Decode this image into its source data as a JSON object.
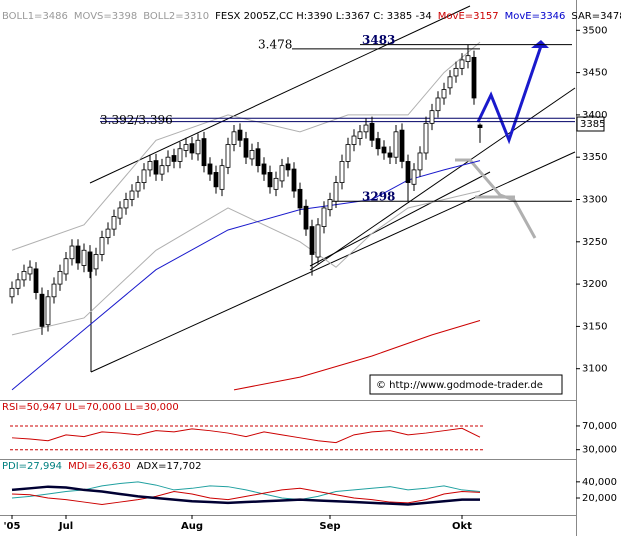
{
  "chart_data": [
    {
      "type": "candlestick",
      "header": [
        {
          "text": "BOLL1=3486",
          "color": "#999999"
        },
        {
          "text": "MOVS=3398",
          "color": "#999999"
        },
        {
          "text": "BOLL2=3310",
          "color": "#999999"
        },
        {
          "text": "FESX 2005Z,CC H:3390 L:3367 C: 3385 -34",
          "color": "#000000"
        },
        {
          "text": "MovE=3157",
          "color": "#cc0000"
        },
        {
          "text": "MovE=3346",
          "color": "#0000cc"
        },
        {
          "text": "SAR=3478",
          "color": "#000000"
        }
      ],
      "categories": [
        "'05",
        null,
        null,
        null,
        null,
        null,
        null,
        null,
        null,
        "Jul",
        null,
        null,
        null,
        null,
        null,
        null,
        null,
        null,
        null,
        null,
        null,
        null,
        null,
        null,
        null,
        null,
        null,
        null,
        null,
        null,
        "Aug",
        null,
        null,
        null,
        null,
        null,
        null,
        null,
        null,
        null,
        null,
        null,
        null,
        null,
        null,
        null,
        null,
        null,
        null,
        null,
        null,
        null,
        null,
        "Sep",
        null,
        null,
        null,
        null,
        null,
        null,
        null,
        null,
        null,
        null,
        null,
        null,
        null,
        null,
        null,
        null,
        null,
        null,
        null,
        null,
        null,
        "Okt",
        null,
        null,
        null
      ],
      "open": [
        3185,
        3195,
        3205,
        3212,
        3218,
        3188,
        3152,
        3185,
        3200,
        3212,
        3230,
        3245,
        3222,
        3238,
        3218,
        3235,
        3255,
        3265,
        3278,
        3290,
        3300,
        3310,
        3320,
        3335,
        3346,
        3330,
        3340,
        3352,
        3345,
        3358,
        3366,
        3354,
        3372,
        3342,
        3332,
        3312,
        3338,
        3365,
        3382,
        3372,
        3348,
        3360,
        3342,
        3332,
        3312,
        3322,
        3342,
        3336,
        3312,
        3292,
        3268,
        3232,
        3268,
        3288,
        3298,
        3320,
        3345,
        3365,
        3372,
        3380,
        3390,
        3372,
        3362,
        3355,
        3350,
        3382,
        3345,
        3318,
        3335,
        3355,
        3390,
        3405,
        3420,
        3432,
        3446,
        3455,
        3463,
        3468,
        3388
      ],
      "high": [
        3203,
        3213,
        3223,
        3228,
        3226,
        3196,
        3193,
        3208,
        3223,
        3238,
        3253,
        3253,
        3248,
        3246,
        3243,
        3263,
        3273,
        3288,
        3298,
        3308,
        3318,
        3328,
        3343,
        3353,
        3354,
        3348,
        3358,
        3360,
        3368,
        3373,
        3374,
        3378,
        3380,
        3350,
        3340,
        3348,
        3373,
        3388,
        3390,
        3380,
        3366,
        3368,
        3350,
        3340,
        3333,
        3348,
        3350,
        3344,
        3320,
        3300,
        3276,
        3278,
        3298,
        3308,
        3328,
        3353,
        3373,
        3383,
        3388,
        3396,
        3398,
        3380,
        3370,
        3363,
        3388,
        3390,
        3353,
        3343,
        3363,
        3398,
        3413,
        3428,
        3438,
        3453,
        3463,
        3473,
        3483,
        3476,
        3390
      ],
      "low": [
        3177,
        3187,
        3197,
        3204,
        3182,
        3140,
        3144,
        3177,
        3192,
        3204,
        3222,
        3217,
        3214,
        3207,
        3210,
        3227,
        3247,
        3257,
        3270,
        3282,
        3292,
        3302,
        3312,
        3327,
        3322,
        3322,
        3332,
        3337,
        3337,
        3350,
        3347,
        3346,
        3332,
        3322,
        3307,
        3304,
        3330,
        3357,
        3362,
        3342,
        3340,
        3332,
        3322,
        3307,
        3304,
        3314,
        3327,
        3302,
        3282,
        3257,
        3210,
        3224,
        3260,
        3280,
        3290,
        3312,
        3337,
        3357,
        3364,
        3372,
        3362,
        3352,
        3347,
        3342,
        3342,
        3337,
        3298,
        3310,
        3327,
        3347,
        3382,
        3397,
        3412,
        3424,
        3438,
        3447,
        3455,
        3412,
        3367
      ],
      "close": [
        3195,
        3205,
        3215,
        3220,
        3190,
        3150,
        3185,
        3200,
        3215,
        3230,
        3245,
        3225,
        3240,
        3215,
        3235,
        3255,
        3265,
        3280,
        3290,
        3300,
        3310,
        3320,
        3335,
        3345,
        3330,
        3340,
        3350,
        3345,
        3360,
        3365,
        3355,
        3370,
        3340,
        3330,
        3315,
        3340,
        3365,
        3380,
        3370,
        3350,
        3358,
        3340,
        3330,
        3315,
        3325,
        3340,
        3335,
        3310,
        3290,
        3265,
        3235,
        3270,
        3290,
        3300,
        3320,
        3345,
        3365,
        3375,
        3380,
        3388,
        3370,
        3360,
        3355,
        3350,
        3380,
        3345,
        3320,
        3335,
        3355,
        3390,
        3405,
        3420,
        3430,
        3445,
        3455,
        3465,
        3470,
        3420,
        3385
      ],
      "series": [
        {
          "color": "#b0b0b0",
          "x": [
            0,
            12,
            24,
            36,
            48,
            56,
            66,
            72,
            78
          ],
          "values": [
            3240,
            3270,
            3370,
            3400,
            3380,
            3400,
            3400,
            3450,
            3486
          ]
        },
        {
          "color": "#b0b0b0",
          "x": [
            0,
            12,
            24,
            36,
            48,
            54,
            60,
            66,
            72,
            78
          ],
          "values": [
            3140,
            3160,
            3240,
            3290,
            3250,
            3220,
            3260,
            3290,
            3300,
            3310
          ]
        },
        {
          "color": "#1a1acc",
          "x": [
            0,
            12,
            24,
            36,
            48,
            54,
            60,
            66,
            72,
            78
          ],
          "values": [
            3075,
            3146,
            3217,
            3264,
            3288,
            3294,
            3300,
            3323,
            3335,
            3346
          ]
        },
        {
          "color": "#cc0000",
          "x": [
            37,
            48,
            60,
            70,
            78
          ],
          "values": [
            3075,
            3090,
            3115,
            3140,
            3157
          ]
        }
      ],
      "levels": [
        {
          "value": 3478,
          "label": "3.478"
        },
        {
          "value": 3483,
          "label": "3483"
        },
        {
          "values": [
            3392,
            3396
          ],
          "label": "3.392/3.396"
        },
        {
          "value": 3298,
          "label": "3298"
        }
      ],
      "last_price": 3385,
      "copyright": "© http://www.godmode-trader.de",
      "ylim": [
        3063,
        3524
      ],
      "yticks": [
        3100,
        3150,
        3200,
        3250,
        3300,
        3350,
        3400,
        3450,
        3500
      ]
    },
    {
      "type": "line",
      "header": [
        {
          "text": "RSI=50,947 UL=70,000 LL=30,000",
          "color": "#cc0000"
        }
      ],
      "x": [
        0,
        3,
        6,
        9,
        12,
        15,
        18,
        21,
        24,
        27,
        30,
        33,
        36,
        39,
        42,
        45,
        48,
        51,
        54,
        57,
        60,
        63,
        66,
        69,
        72,
        75,
        78
      ],
      "series": [
        {
          "color": "#cc0000",
          "values": [
            50,
            48,
            45,
            55,
            52,
            60,
            58,
            55,
            62,
            60,
            65,
            62,
            58,
            52,
            60,
            55,
            50,
            45,
            42,
            55,
            60,
            62,
            55,
            58,
            62,
            66,
            51
          ]
        }
      ],
      "ylim": [
        16,
        112
      ],
      "yticks": [
        {
          "value": 30,
          "label": "30,000"
        },
        {
          "value": 70,
          "label": "70,000"
        }
      ],
      "guide_color": "#cc0000"
    },
    {
      "type": "line",
      "header": [
        {
          "text": "PDI=27,994",
          "color": "#008080"
        },
        {
          "text": "MDI=26,630",
          "color": "#cc0000"
        },
        {
          "text": "ADX=17,702",
          "color": "#000000"
        }
      ],
      "x": [
        0,
        3,
        6,
        9,
        12,
        15,
        18,
        21,
        24,
        27,
        30,
        33,
        36,
        39,
        42,
        45,
        48,
        51,
        54,
        57,
        60,
        63,
        66,
        69,
        72,
        75,
        78
      ],
      "series": [
        {
          "color": "#20a0a0",
          "values": [
            20,
            22,
            25,
            28,
            30,
            35,
            38,
            40,
            36,
            30,
            32,
            35,
            34,
            30,
            25,
            20,
            18,
            22,
            28,
            30,
            32,
            34,
            30,
            32,
            35,
            30,
            28
          ]
        },
        {
          "color": "#cc0000",
          "values": [
            25,
            24,
            20,
            18,
            15,
            12,
            15,
            18,
            22,
            28,
            25,
            20,
            18,
            22,
            26,
            30,
            32,
            28,
            24,
            20,
            18,
            15,
            14,
            18,
            25,
            28,
            27
          ]
        },
        {
          "color": "#000033",
          "width": 2.5,
          "values": [
            30,
            32,
            34,
            33,
            30,
            28,
            25,
            22,
            20,
            18,
            16,
            15,
            14,
            15,
            16,
            17,
            18,
            17,
            16,
            15,
            14,
            13,
            12,
            14,
            16,
            18,
            18
          ]
        }
      ],
      "ylim": [
        -1,
        67
      ],
      "yticks": [
        {
          "value": 20,
          "label": "20,000"
        },
        {
          "value": 40,
          "label": "40,000"
        }
      ]
    }
  ]
}
